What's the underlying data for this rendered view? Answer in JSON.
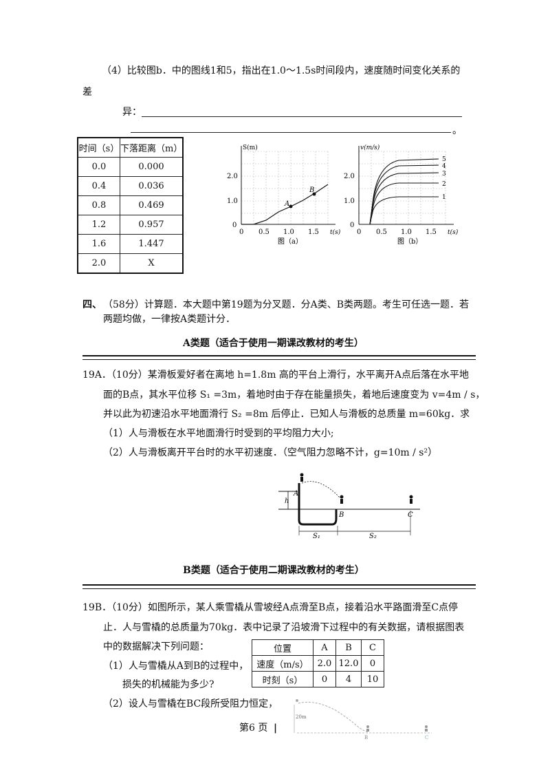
{
  "q4": {
    "line1": "（4）比较图b．中的图线1和5，指出在1.0～1.5s时间段内，速度随时间变化关系的",
    "line2": "差",
    "line3": "异："
  },
  "table1": {
    "headers": [
      "时间（s）",
      "下落距离（m）"
    ],
    "rows": [
      [
        "0.0",
        "0.000"
      ],
      [
        "0.4",
        "0.036"
      ],
      [
        "0.8",
        "0.469"
      ],
      [
        "1.2",
        "0.957"
      ],
      [
        "1.6",
        "1.447"
      ],
      [
        "2.0",
        "X"
      ]
    ]
  },
  "graph_a": {
    "ylabel": "S(m)",
    "xlabel": "t(s)",
    "caption": "图（a）",
    "yticks": [
      "2.0",
      "1.0",
      "0"
    ],
    "xticks": [
      "0",
      "0.5",
      "1.0",
      "1.5"
    ],
    "point_a": "A",
    "point_b": "B"
  },
  "graph_b": {
    "ylabel": "v(m/s)",
    "xlabel": "t(s)",
    "caption": "图（b）",
    "yticks": [
      "2.0",
      "1.0",
      "0"
    ],
    "xticks": [
      "0",
      "0.5",
      "1.0",
      "1.5"
    ],
    "curve_labels": [
      "5",
      "4",
      "3",
      "2",
      "1"
    ]
  },
  "section4": {
    "num": "四、",
    "line1": "（58分）计算题．本大题中第19题为分叉题．分A类、B类两题。考生可任选一题．若",
    "line2": "两题均做，一律按A类题计分．"
  },
  "a_title": "A类题（适合于使用一期课改教材的考生）",
  "q19a": {
    "line1": "19A．（10分）某滑板爱好者在离地 h=1.8m 高的平台上滑行，水平离开A点后落在水平地",
    "line2": "面的B点，其水平位移 S₁ =3m，着地时由于存在能量损失，着地后速度变为 v=4m / s，",
    "line3": "并以此为初速沿水平地面滑行 S₂ =8m 后停止．已知人与滑板的总质量 m=60kg．求",
    "sub1": "（1）人与滑板在水平地面滑行时受到的平均阻力大小;",
    "sub2": "（2）人与滑板离开平台时的水平初速度．（空气阻力忽略不计，g=10m / s²）"
  },
  "fig19a": {
    "h": "h",
    "A": "A",
    "B": "B",
    "C": "C",
    "S1": "S₁",
    "S2": "S₂"
  },
  "b_title": "B类题（适合于使用二期课改教材的考生）",
  "q19b": {
    "line1": "19B．（10分）如图所示，某人乘雪橇从雪坡经A点滑至B点，接着沿水平路面滑至C点停",
    "line2": "止．人与雪橇的总质量为70kg．表中记录了沿坡滑下过程中的有关数据，请根据图表",
    "line3": "中的数据解决下列问题：",
    "sub1a": "（1）人与雪橇从A到B的过程中，",
    "sub1b": "损失的机械能为多少?",
    "sub2": "（2）设人与雪橇在BC段所受阻力恒定，"
  },
  "table2": {
    "headers": [
      "位置",
      "A",
      "B",
      "C"
    ],
    "rows": [
      [
        "速度（m/s）",
        "2.0",
        "12.0",
        "0"
      ],
      [
        "时刻（s）",
        "0",
        "4",
        "10"
      ]
    ]
  },
  "fig19b": {
    "height": "20m",
    "B": "B",
    "C": "C"
  },
  "footer": {
    "page": "第6 页",
    "bar": "|"
  }
}
